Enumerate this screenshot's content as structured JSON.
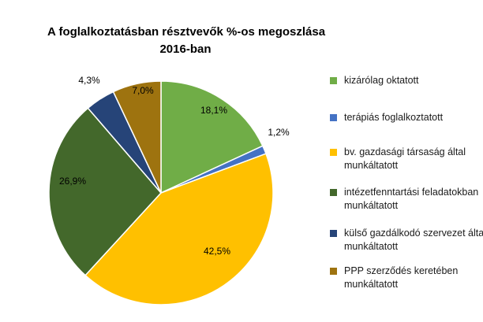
{
  "chart_data": {
    "type": "pie",
    "title_lines": [
      "A foglalkoztatásban résztvevők %-os megoszlása",
      "2016-ban"
    ],
    "slices": [
      {
        "label": "kizárólag oktatott",
        "value": 18.1,
        "value_label": "18,1%",
        "color": "#70ad47"
      },
      {
        "label": "terápiás foglalkoztatott",
        "value": 1.2,
        "value_label": "1,2%",
        "color": "#4472c4"
      },
      {
        "label": "bv. gazdasági társaság által munkáltatott",
        "value": 42.5,
        "value_label": "42,5%",
        "color": "#ffc000"
      },
      {
        "label": "intézetfenntartási feladatokban munkáltatott",
        "value": 26.9,
        "value_label": "26,9%",
        "color": "#43682b"
      },
      {
        "label": "külső gazdálkodó szervezet által munkáltatott",
        "value": 4.3,
        "value_label": "4,3%",
        "color": "#264478"
      },
      {
        "label": "PPP szerződés keretében munkáltatott",
        "value": 7.0,
        "value_label": "7,0%",
        "color": "#9e730f"
      }
    ],
    "legend_position": "right"
  }
}
